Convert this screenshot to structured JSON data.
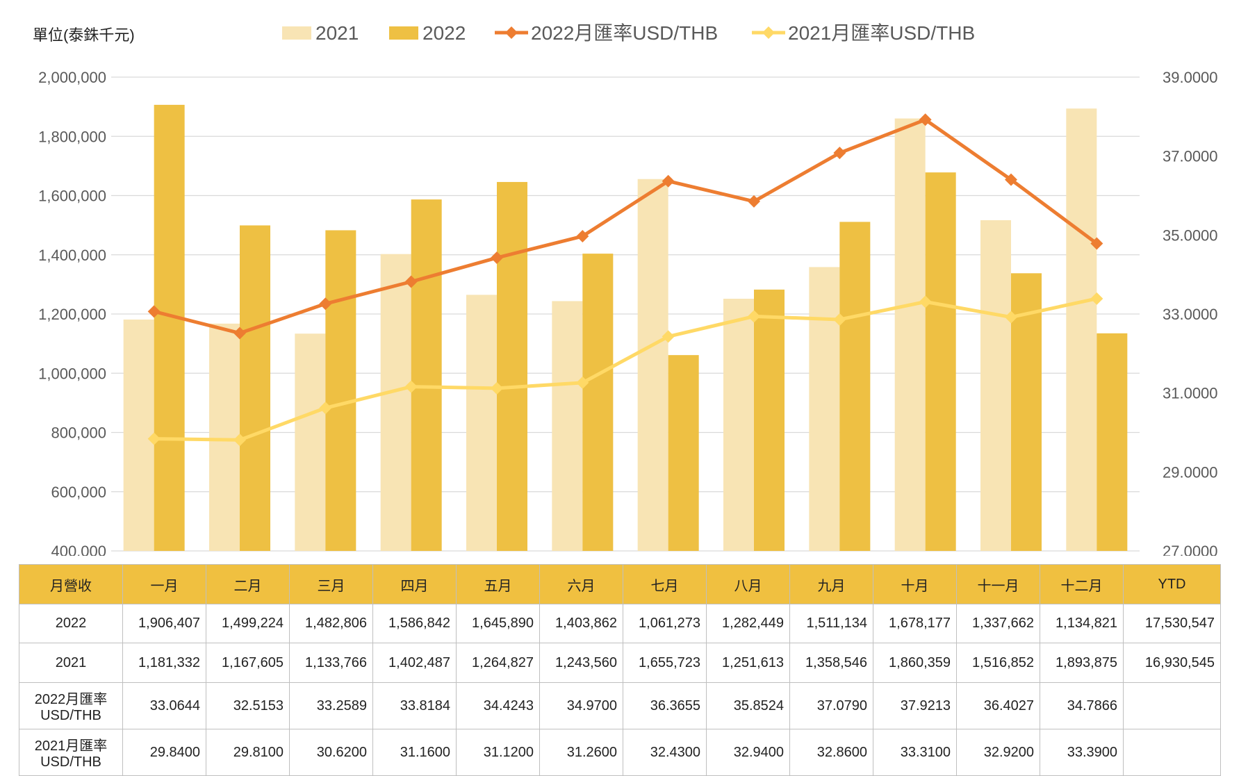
{
  "chart_data": {
    "type": "bar",
    "unit_label": "單位(泰銖千元)",
    "categories": [
      "一月",
      "二月",
      "三月",
      "四月",
      "五月",
      "六月",
      "七月",
      "八月",
      "九月",
      "十月",
      "十一月",
      "十二月"
    ],
    "series": [
      {
        "name": "2021",
        "kind": "bar",
        "axis": "left",
        "color": "#f8e4b4",
        "values": [
          1181332,
          1167605,
          1133766,
          1402487,
          1264827,
          1243560,
          1655723,
          1251613,
          1358546,
          1860359,
          1516852,
          1893875
        ]
      },
      {
        "name": "2022",
        "kind": "bar",
        "axis": "left",
        "color": "#eec043",
        "values": [
          1906407,
          1499224,
          1482806,
          1586842,
          1645890,
          1403862,
          1061273,
          1282449,
          1511134,
          1678177,
          1337662,
          1134821
        ]
      },
      {
        "name": "2022月匯率USD/THB",
        "kind": "line",
        "axis": "right",
        "color": "#ed7d31",
        "values": [
          33.0644,
          32.5153,
          33.2589,
          33.8184,
          34.4243,
          34.97,
          36.3655,
          35.8524,
          37.079,
          37.9213,
          36.4027,
          34.7866
        ]
      },
      {
        "name": "2021月匯率USD/THB",
        "kind": "line",
        "axis": "right",
        "color": "#ffd966",
        "values": [
          29.84,
          29.81,
          30.62,
          31.16,
          31.12,
          31.26,
          32.43,
          32.94,
          32.86,
          33.31,
          32.92,
          33.39
        ]
      }
    ],
    "left_axis": {
      "min": 400000,
      "max": 2000000,
      "step": 200000,
      "ticks": [
        "400,000",
        "600,000",
        "800,000",
        "1,000,000",
        "1,200,000",
        "1,400,000",
        "1,600,000",
        "1,800,000",
        "2,000,000"
      ]
    },
    "right_axis": {
      "min": 27,
      "max": 39,
      "step": 2,
      "ticks": [
        "27.0000",
        "29.0000",
        "31.0000",
        "33.0000",
        "35.0000",
        "37.0000",
        "39.0000"
      ]
    },
    "grid": true,
    "legend_position": "top"
  },
  "table": {
    "header": [
      "月營收",
      "一月",
      "二月",
      "三月",
      "四月",
      "五月",
      "六月",
      "七月",
      "八月",
      "九月",
      "十月",
      "十一月",
      "十二月",
      "YTD"
    ],
    "rows": [
      {
        "label": "2022",
        "cells": [
          "1,906,407",
          "1,499,224",
          "1,482,806",
          "1,586,842",
          "1,645,890",
          "1,403,862",
          "1,061,273",
          "1,282,449",
          "1,511,134",
          "1,678,177",
          "1,337,662",
          "1,134,821",
          "17,530,547"
        ]
      },
      {
        "label": "2021",
        "cells": [
          "1,181,332",
          "1,167,605",
          "1,133,766",
          "1,402,487",
          "1,264,827",
          "1,243,560",
          "1,655,723",
          "1,251,613",
          "1,358,546",
          "1,860,359",
          "1,516,852",
          "1,893,875",
          "16,930,545"
        ]
      },
      {
        "label_line1": "2022月匯率",
        "label_line2": "USD/THB",
        "cells": [
          "33.0644",
          "32.5153",
          "33.2589",
          "33.8184",
          "34.4243",
          "34.9700",
          "36.3655",
          "35.8524",
          "37.0790",
          "37.9213",
          "36.4027",
          "34.7866",
          ""
        ]
      },
      {
        "label_line1": "2021月匯率",
        "label_line2": "USD/THB",
        "cells": [
          "29.8400",
          "29.8100",
          "30.6200",
          "31.1600",
          "31.1200",
          "31.2600",
          "32.4300",
          "32.9400",
          "32.8600",
          "33.3100",
          "32.9200",
          "33.3900",
          ""
        ]
      }
    ]
  }
}
